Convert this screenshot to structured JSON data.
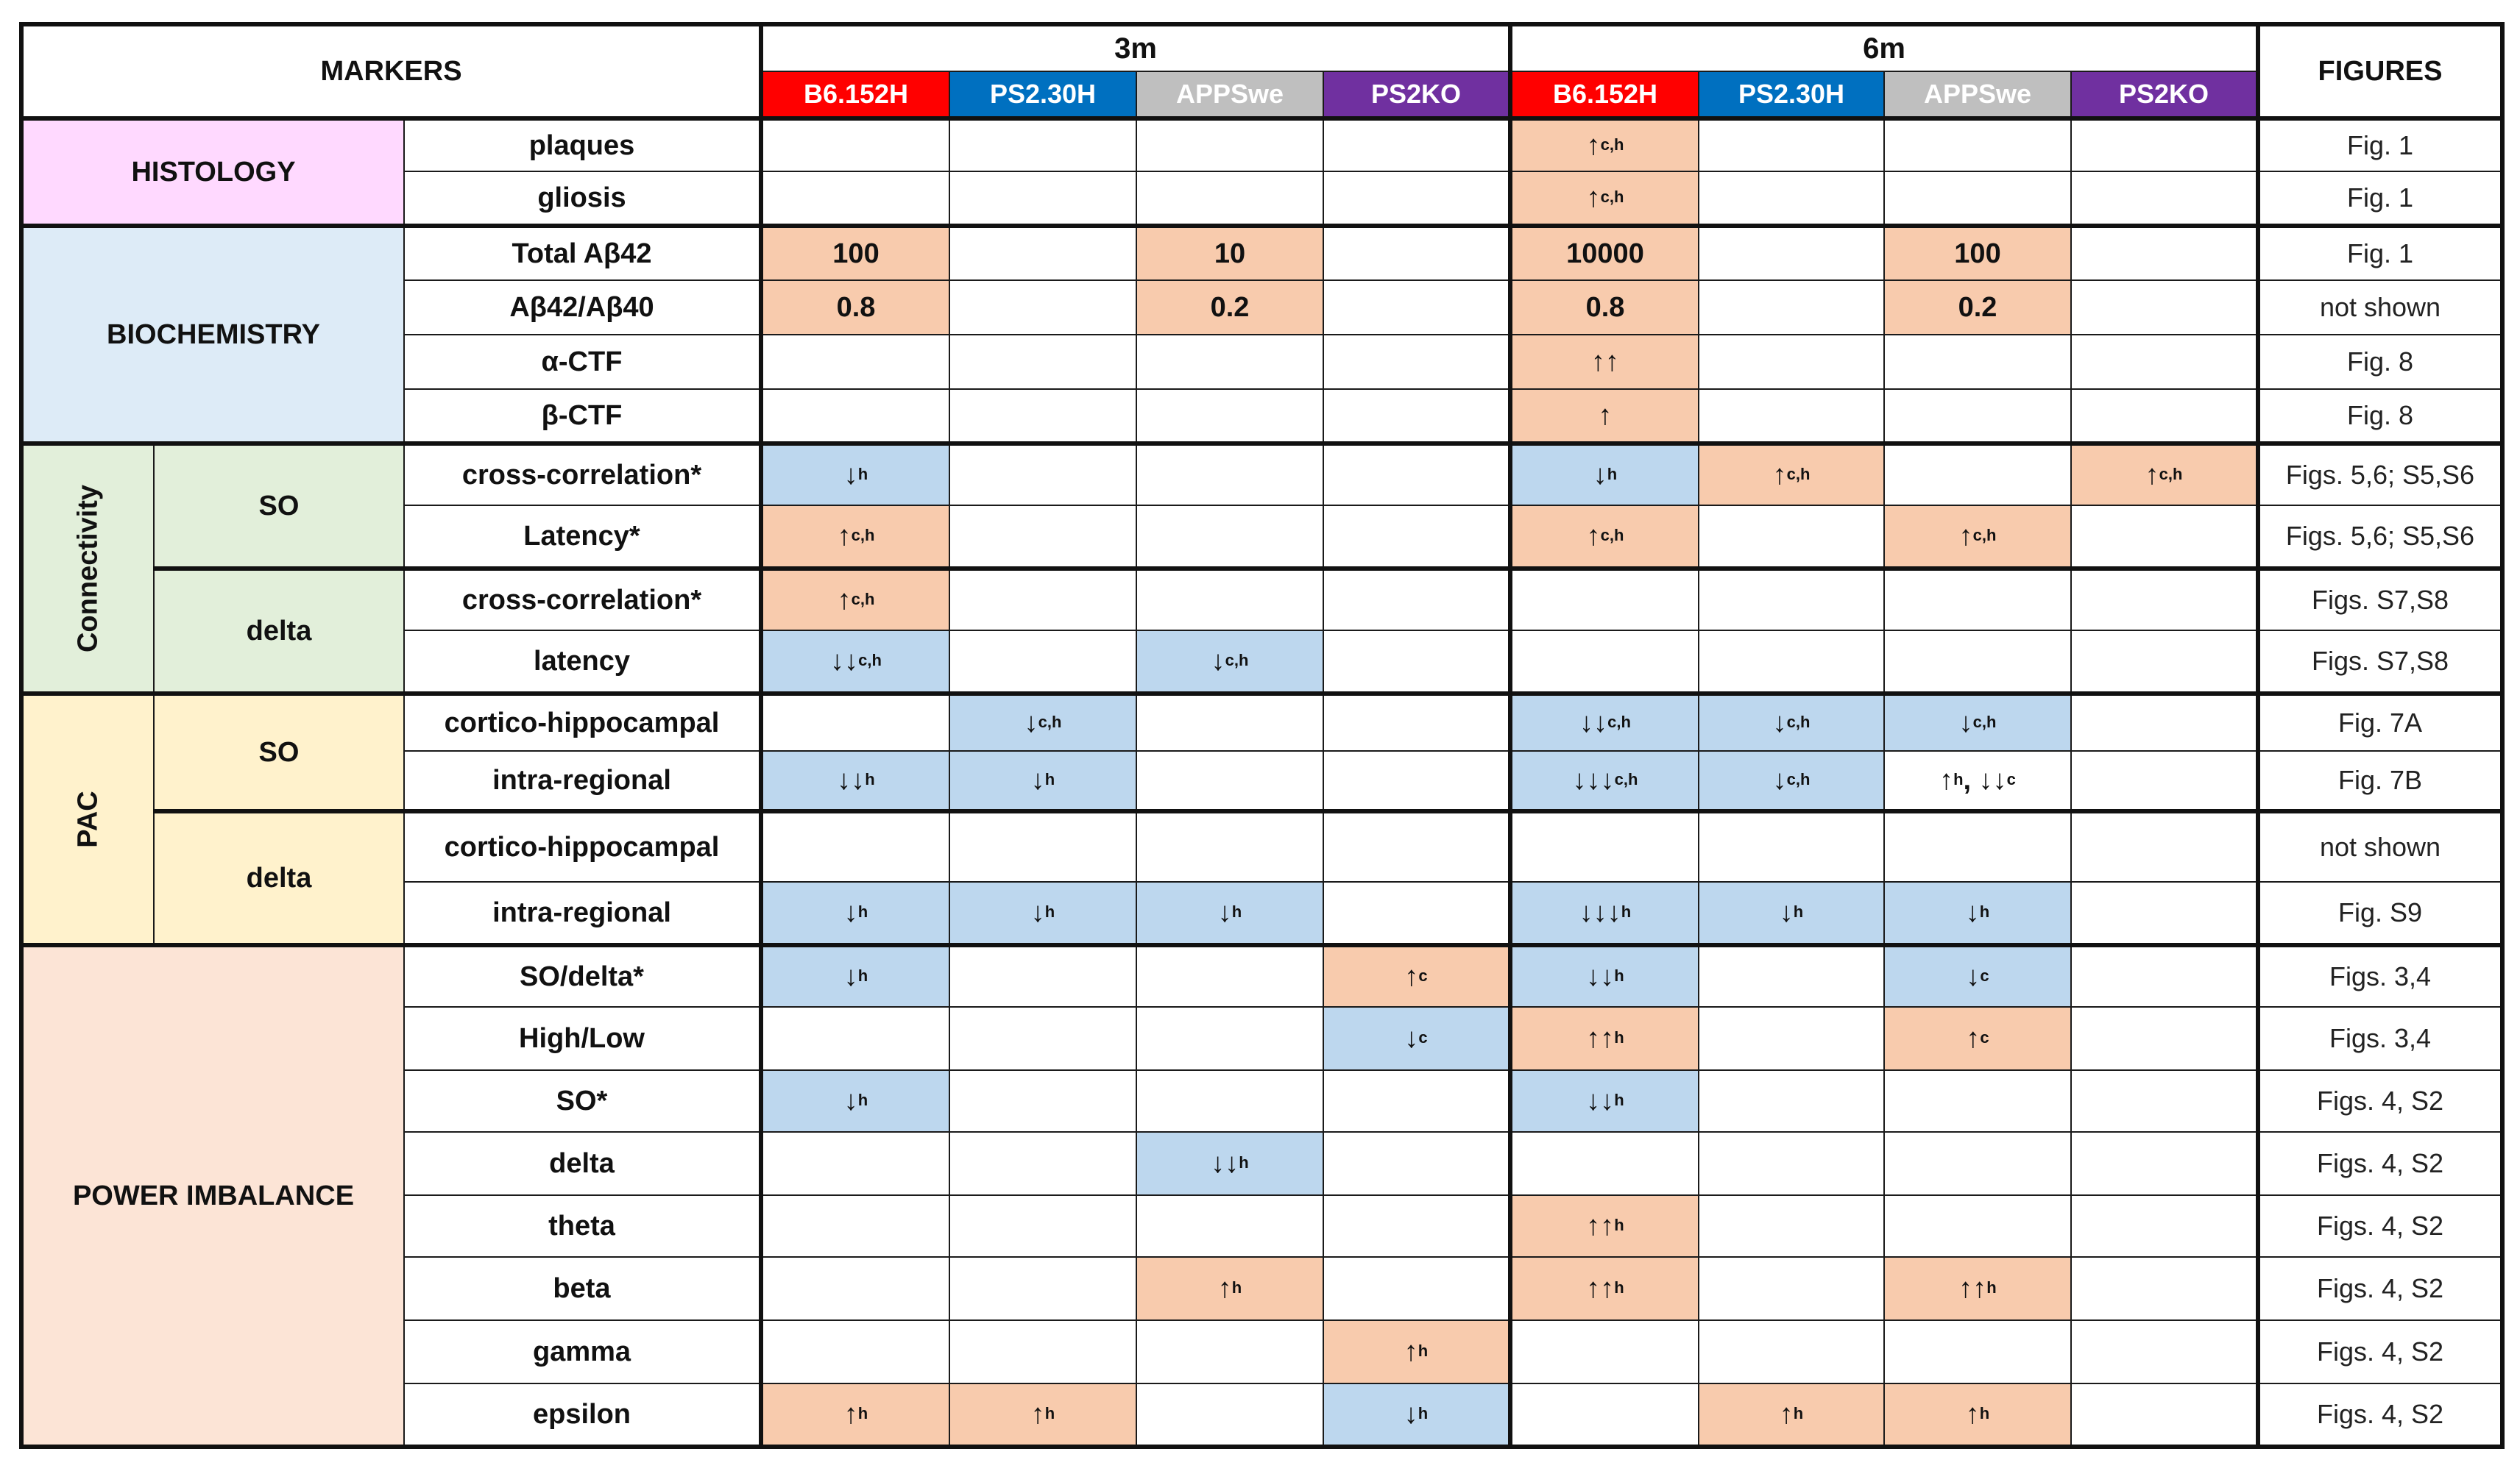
{
  "header": {
    "markers": "MARKERS",
    "figures": "FIGURES",
    "ages": [
      "3m",
      "6m"
    ],
    "models": [
      {
        "label": "B6.152H",
        "color": "#ff0000"
      },
      {
        "label": "PS2.30H",
        "color": "#0070c0"
      },
      {
        "label": "APPSwe",
        "color": "#bfbfbf"
      },
      {
        "label": "PS2KO",
        "color": "#7030a0"
      }
    ]
  },
  "colors": {
    "up": "#f8cbad",
    "down": "#bdd7ee",
    "histology": "#ffd9ff",
    "biochemistry": "#ddebf7",
    "connectivity": "#e2efda",
    "pac": "#fff2cc",
    "power": "#fce4d6"
  },
  "categories": {
    "histology": "HISTOLOGY",
    "biochemistry": "BIOCHEMISTRY",
    "connectivity": "Connectivity",
    "pac": "PAC",
    "power": "POWER IMBALANCE",
    "so": "SO",
    "delta": "delta"
  },
  "rows": [
    {
      "marker": "plaques",
      "figure": "Fig. 1",
      "cells": [
        null,
        null,
        null,
        null,
        {
          "t": "↑",
          "s": "c,h",
          "k": "up"
        },
        null,
        null,
        null
      ]
    },
    {
      "marker": "gliosis",
      "figure": "Fig. 1",
      "cells": [
        null,
        null,
        null,
        null,
        {
          "t": "↑",
          "s": "c,h",
          "k": "up"
        },
        null,
        null,
        null
      ]
    },
    {
      "marker": "Total Aβ42",
      "figure": "Fig. 1",
      "cells": [
        {
          "t": "100",
          "k": "up"
        },
        null,
        {
          "t": "10",
          "k": "up"
        },
        null,
        {
          "t": "10000",
          "k": "up"
        },
        null,
        {
          "t": "100",
          "k": "up"
        },
        null
      ]
    },
    {
      "marker": "Aβ42/Aβ40",
      "figure": "not shown",
      "cells": [
        {
          "t": "0.8",
          "k": "up"
        },
        null,
        {
          "t": "0.2",
          "k": "up"
        },
        null,
        {
          "t": "0.8",
          "k": "up"
        },
        null,
        {
          "t": "0.2",
          "k": "up"
        },
        null
      ]
    },
    {
      "marker": "α-CTF",
      "figure": "Fig. 8",
      "cells": [
        null,
        null,
        null,
        null,
        {
          "t": "↑↑",
          "k": "up"
        },
        null,
        null,
        null
      ]
    },
    {
      "marker": "β-CTF",
      "figure": "Fig. 8",
      "cells": [
        null,
        null,
        null,
        null,
        {
          "t": "↑",
          "k": "up"
        },
        null,
        null,
        null
      ]
    },
    {
      "marker": "cross-correlation*",
      "figure": "Figs. 5,6; S5,S6",
      "cells": [
        {
          "t": "↓",
          "s": "h",
          "k": "down"
        },
        null,
        null,
        null,
        {
          "t": "↓",
          "s": "h",
          "k": "down"
        },
        {
          "t": "↑",
          "s": "c,h",
          "k": "up"
        },
        null,
        {
          "t": "↑",
          "s": "c,h",
          "k": "up"
        }
      ]
    },
    {
      "marker": "Latency*",
      "figure": "Figs. 5,6; S5,S6",
      "cells": [
        {
          "t": "↑",
          "s": "c,h",
          "k": "up"
        },
        null,
        null,
        null,
        {
          "t": "↑",
          "s": "c,h",
          "k": "up"
        },
        null,
        {
          "t": "↑",
          "s": "c,h",
          "k": "up"
        },
        null
      ]
    },
    {
      "marker": "cross-correlation*",
      "figure": "Figs. S7,S8",
      "cells": [
        {
          "t": "↑",
          "s": "c,h",
          "k": "up"
        },
        null,
        null,
        null,
        null,
        null,
        null,
        null
      ]
    },
    {
      "marker": "latency",
      "figure": "Figs. S7,S8",
      "cells": [
        {
          "t": "↓↓",
          "s": "c,h",
          "k": "down"
        },
        null,
        {
          "t": "↓",
          "s": "c,h",
          "k": "down"
        },
        null,
        null,
        null,
        null,
        null
      ]
    },
    {
      "marker": "cortico-hippocampal",
      "figure": "Fig. 7A",
      "cells": [
        null,
        {
          "t": "↓",
          "s": "c,h",
          "k": "down"
        },
        null,
        null,
        {
          "t": "↓↓",
          "s": "c,h",
          "k": "down"
        },
        {
          "t": "↓",
          "s": "c,h",
          "k": "down"
        },
        {
          "t": "↓",
          "s": "c,h",
          "k": "down"
        },
        null
      ]
    },
    {
      "marker": "intra-regional",
      "figure": "Fig. 7B",
      "cells": [
        {
          "t": "↓↓",
          "s": "h",
          "k": "down"
        },
        {
          "t": "↓",
          "s": "h",
          "k": "down"
        },
        null,
        null,
        {
          "t": "↓↓↓",
          "s": "c,h",
          "k": "down"
        },
        {
          "t": "↓",
          "s": "c,h",
          "k": "down"
        },
        {
          "t": "↑",
          "s": "h",
          "t2": ", ↓↓",
          "s2": "c",
          "k": "none"
        },
        null
      ]
    },
    {
      "marker": "cortico-hippocampal",
      "figure": "not shown",
      "cells": [
        null,
        null,
        null,
        null,
        null,
        null,
        null,
        null
      ]
    },
    {
      "marker": "intra-regional",
      "figure": "Fig. S9",
      "cells": [
        {
          "t": "↓",
          "s": "h",
          "k": "down"
        },
        {
          "t": "↓",
          "s": "h",
          "k": "down"
        },
        {
          "t": "↓",
          "s": "h",
          "k": "down"
        },
        null,
        {
          "t": "↓↓↓",
          "s": "h",
          "k": "down"
        },
        {
          "t": "↓",
          "s": "h",
          "k": "down"
        },
        {
          "t": "↓",
          "s": "h",
          "k": "down"
        },
        null
      ]
    },
    {
      "marker": "SO/delta*",
      "figure": "Figs. 3,4",
      "cells": [
        {
          "t": "↓",
          "s": "h",
          "k": "down"
        },
        null,
        null,
        {
          "t": "↑",
          "s": "c",
          "k": "up"
        },
        {
          "t": "↓↓",
          "s": "h",
          "k": "down"
        },
        null,
        {
          "t": "↓",
          "s": "c",
          "k": "down"
        },
        null
      ]
    },
    {
      "marker": "High/Low",
      "figure": "Figs. 3,4",
      "cells": [
        null,
        null,
        null,
        {
          "t": "↓",
          "s": "c",
          "k": "down"
        },
        {
          "t": "↑↑",
          "s": "h",
          "k": "up"
        },
        null,
        {
          "t": "↑",
          "s": "c",
          "k": "up"
        },
        null
      ]
    },
    {
      "marker": "SO*",
      "figure": "Figs. 4, S2",
      "cells": [
        {
          "t": "↓",
          "s": "h",
          "k": "down"
        },
        null,
        null,
        null,
        {
          "t": "↓↓",
          "s": "h",
          "k": "down"
        },
        null,
        null,
        null
      ]
    },
    {
      "marker": "delta",
      "figure": "Figs. 4, S2",
      "cells": [
        null,
        null,
        {
          "t": "↓↓",
          "s": "h",
          "k": "down"
        },
        null,
        null,
        null,
        null,
        null
      ]
    },
    {
      "marker": "theta",
      "figure": "Figs. 4, S2",
      "cells": [
        null,
        null,
        null,
        null,
        {
          "t": "↑↑",
          "s": "h",
          "k": "up"
        },
        null,
        null,
        null
      ]
    },
    {
      "marker": "beta",
      "figure": "Figs. 4, S2",
      "cells": [
        null,
        null,
        {
          "t": "↑",
          "s": "h",
          "k": "up"
        },
        null,
        {
          "t": "↑↑",
          "s": "h",
          "k": "up"
        },
        null,
        {
          "t": "↑↑",
          "s": "h",
          "k": "up"
        },
        null
      ]
    },
    {
      "marker": "gamma",
      "figure": "Figs. 4, S2",
      "cells": [
        null,
        null,
        null,
        {
          "t": "↑",
          "s": "h",
          "k": "up"
        },
        null,
        null,
        null,
        null
      ]
    },
    {
      "marker": "epsilon",
      "figure": "Figs. 4, S2",
      "cells": [
        {
          "t": "↑",
          "s": "h",
          "k": "up"
        },
        {
          "t": "↑",
          "s": "h",
          "k": "up"
        },
        null,
        {
          "t": "↓",
          "s": "h",
          "k": "down"
        },
        null,
        {
          "t": "↑",
          "s": "h",
          "k": "up"
        },
        {
          "t": "↑",
          "s": "h",
          "k": "up"
        },
        null
      ]
    }
  ]
}
